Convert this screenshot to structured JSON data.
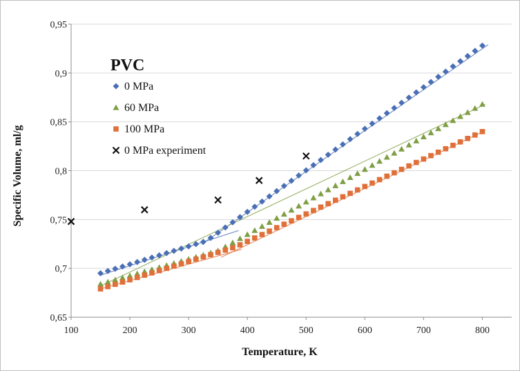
{
  "chart_data": {
    "type": "scatter",
    "title": "PVC",
    "xlabel": "Temperature, K",
    "ylabel": "Specific Volume, ml/g",
    "xlim": [
      100,
      850
    ],
    "ylim": [
      0.65,
      0.95
    ],
    "xticks": [
      100,
      200,
      300,
      400,
      500,
      600,
      700,
      800
    ],
    "xtick_labels": [
      "100",
      "200",
      "300",
      "400",
      "500",
      "600",
      "700",
      "800"
    ],
    "yticks": [
      0.65,
      0.7,
      0.75,
      0.8,
      0.85,
      0.9,
      0.95
    ],
    "ytick_labels": [
      "0,65",
      "0,7",
      "0,75",
      "0,8",
      "0,85",
      "0,9",
      "0,95"
    ],
    "grid": "horizontal",
    "legend_position": "top-left",
    "series": [
      {
        "name": "0 MPa",
        "marker": "diamond",
        "color": "#4a6fb5",
        "fit": {
          "knee_x": 330,
          "knee_y": 0.728,
          "start": [
            150,
            0.693
          ],
          "end": [
            810,
            0.929
          ],
          "glassy_extend_to": 385,
          "melt_extend_from": 322
        },
        "x_start": 150,
        "x_step": 12.5,
        "x_end": 800,
        "y_glassy": [
          150,
          0.695,
          330,
          0.728
        ],
        "y_melt": [
          330,
          0.728,
          800,
          0.928
        ]
      },
      {
        "name": "60 MPa",
        "marker": "triangle",
        "color": "#7f9f45",
        "fit": {
          "start": [
            150,
            0.682
          ],
          "end": [
            805,
            0.868
          ]
        },
        "x_start": 150,
        "x_step": 12.5,
        "x_end": 800,
        "y_glassy": [
          150,
          0.684,
          350,
          0.718
        ],
        "y_melt": [
          350,
          0.718,
          800,
          0.868
        ]
      },
      {
        "name": "100 MPa",
        "marker": "square",
        "color": "#e0703a",
        "fit": {
          "knee_x": 375,
          "knee_y": 0.717,
          "start": [
            150,
            0.679
          ],
          "end": [
            805,
            0.841
          ],
          "glassy_extend_to": 390,
          "melt_extend_from": 355
        },
        "x_start": 150,
        "x_step": 12.5,
        "x_end": 800,
        "y_glassy": [
          150,
          0.679,
          380,
          0.722
        ],
        "y_melt": [
          380,
          0.722,
          800,
          0.84
        ]
      },
      {
        "name": "0 MPa experiment",
        "marker": "x",
        "color": "#111111",
        "points": [
          [
            100,
            0.748
          ],
          [
            225,
            0.76
          ],
          [
            350,
            0.77
          ],
          [
            420,
            0.79
          ],
          [
            500,
            0.815
          ]
        ]
      }
    ]
  }
}
